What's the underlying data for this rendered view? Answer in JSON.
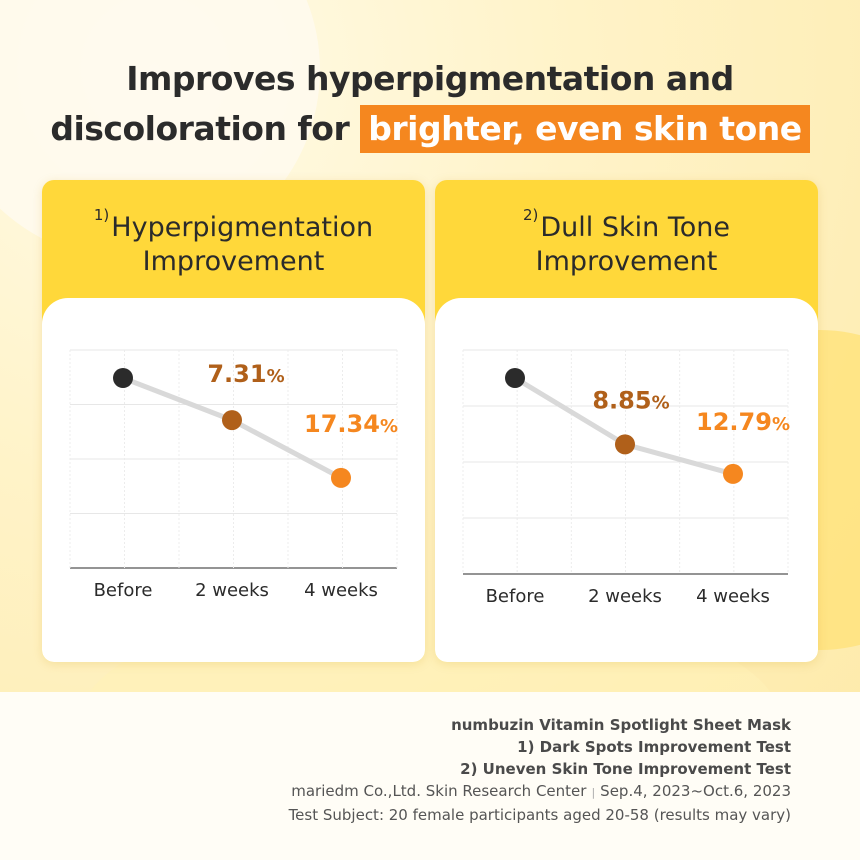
{
  "headline": {
    "line1": "Improves hyperpigmentation and",
    "line2_prefix": "discoloration for ",
    "line2_highlight": "brighter, even skin tone"
  },
  "colors": {
    "accent_orange": "#f5871f",
    "brown": "#b0601a",
    "card_yellow": "#ffd83a",
    "dark_dot": "#2b2b2b",
    "line_gray": "#d9d9d9"
  },
  "chart_data": [
    {
      "type": "line",
      "title_num": "1)",
      "title_line1": "Hyperpigmentation",
      "title_line2": "Improvement",
      "categories": [
        "Before",
        "2 weeks",
        "4 weeks"
      ],
      "values": [
        0,
        7.31,
        17.34
      ],
      "ylim": [
        0,
        25
      ],
      "data_labels": [
        {
          "number": "",
          "unit": ""
        },
        {
          "number": "7.31",
          "unit": "%"
        },
        {
          "number": "17.34",
          "unit": "%"
        }
      ],
      "grid": true
    },
    {
      "type": "line",
      "title_num": "2)",
      "title_line1": "Dull Skin Tone",
      "title_line2": "Improvement",
      "categories": [
        "Before",
        "2 weeks",
        "4 weeks"
      ],
      "values": [
        0,
        8.85,
        12.79
      ],
      "ylim": [
        0,
        20
      ],
      "data_labels": [
        {
          "number": "",
          "unit": ""
        },
        {
          "number": "8.85",
          "unit": "%"
        },
        {
          "number": "12.79",
          "unit": "%"
        }
      ],
      "grid": true
    }
  ],
  "footer": {
    "line1": "numbuzin Vitamin Spotlight Sheet Mask",
    "line2": "1) Dark Spots Improvement Test",
    "line3": "2) Uneven Skin Tone Improvement Test",
    "line4a": "mariedm Co.,Ltd. Skin Research Center",
    "line4sep": "|",
    "line4b": "Sep.4, 2023~Oct.6, 2023",
    "line5": "Test Subject: 20 female participants aged 20-58 (results may vary)"
  }
}
